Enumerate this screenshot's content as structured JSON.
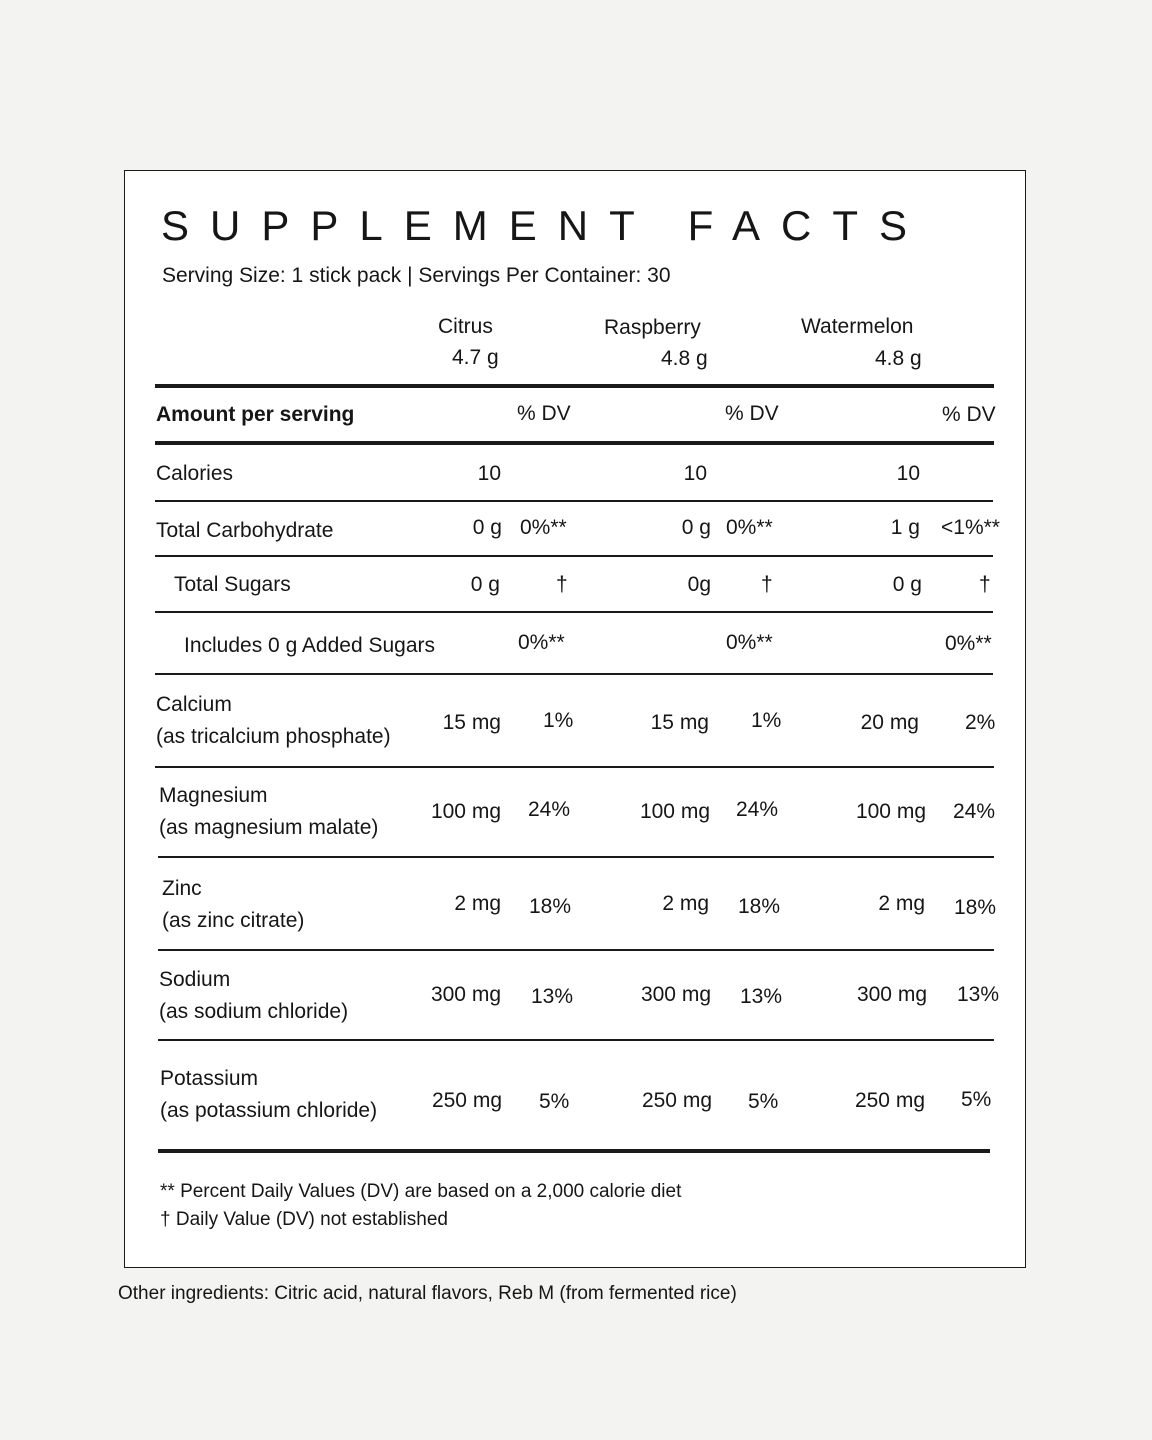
{
  "title": "SUPPLEMENT FACTS",
  "serving_line": "Serving Size: 1 stick pack | Servings Per Container: 30",
  "flavors": [
    {
      "name": "Citrus",
      "weight": "4.7 g"
    },
    {
      "name": "Raspberry",
      "weight": "4.8 g"
    },
    {
      "name": "Watermelon",
      "weight": "4.8 g"
    }
  ],
  "header": {
    "amount_label": "Amount per serving",
    "dv_label": "% DV"
  },
  "rows": [
    {
      "label": "Calories",
      "sub": "",
      "values": [
        {
          "amt": "10",
          "dv": ""
        },
        {
          "amt": "10",
          "dv": ""
        },
        {
          "amt": "10",
          "dv": ""
        }
      ]
    },
    {
      "label": "Total Carbohydrate",
      "sub": "",
      "values": [
        {
          "amt": "0 g",
          "dv": "0%**"
        },
        {
          "amt": "0 g",
          "dv": "0%**"
        },
        {
          "amt": "1 g",
          "dv": "<1%**"
        }
      ]
    },
    {
      "label": "Total Sugars",
      "sub": "",
      "values": [
        {
          "amt": "0 g",
          "dv": "†"
        },
        {
          "amt": "0g",
          "dv": "†"
        },
        {
          "amt": "0 g",
          "dv": "†"
        }
      ]
    },
    {
      "label": "Includes 0 g Added Sugars",
      "sub": "",
      "values": [
        {
          "amt": "",
          "dv": "0%**"
        },
        {
          "amt": "",
          "dv": "0%**"
        },
        {
          "amt": "",
          "dv": "0%**"
        }
      ]
    },
    {
      "label": "Calcium",
      "sub": "(as tricalcium phosphate)",
      "values": [
        {
          "amt": "15 mg",
          "dv": "1%"
        },
        {
          "amt": "15 mg",
          "dv": "1%"
        },
        {
          "amt": "20 mg",
          "dv": "2%"
        }
      ]
    },
    {
      "label": "Magnesium",
      "sub": "(as magnesium malate)",
      "values": [
        {
          "amt": "100 mg",
          "dv": "24%"
        },
        {
          "amt": "100 mg",
          "dv": "24%"
        },
        {
          "amt": "100 mg",
          "dv": "24%"
        }
      ]
    },
    {
      "label": "Zinc",
      "sub": "(as zinc citrate)",
      "values": [
        {
          "amt": "2 mg",
          "dv": "18%"
        },
        {
          "amt": "2 mg",
          "dv": "18%"
        },
        {
          "amt": "2 mg",
          "dv": "18%"
        }
      ]
    },
    {
      "label": "Sodium",
      "sub": "(as sodium chloride)",
      "values": [
        {
          "amt": "300 mg",
          "dv": "13%"
        },
        {
          "amt": "300 mg",
          "dv": "13%"
        },
        {
          "amt": "300 mg",
          "dv": "13%"
        }
      ]
    },
    {
      "label": "Potassium",
      "sub": "(as potassium chloride)",
      "values": [
        {
          "amt": "250 mg",
          "dv": "5%"
        },
        {
          "amt": "250 mg",
          "dv": "5%"
        },
        {
          "amt": "250 mg",
          "dv": "5%"
        }
      ]
    }
  ],
  "footnotes": [
    "** Percent Daily Values (DV) are based on a 2,000 calorie diet",
    "† Daily Value (DV) not established"
  ],
  "other_ingredients": "Other ingredients: Citric acid, natural flavors, Reb M (from fermented rice)"
}
